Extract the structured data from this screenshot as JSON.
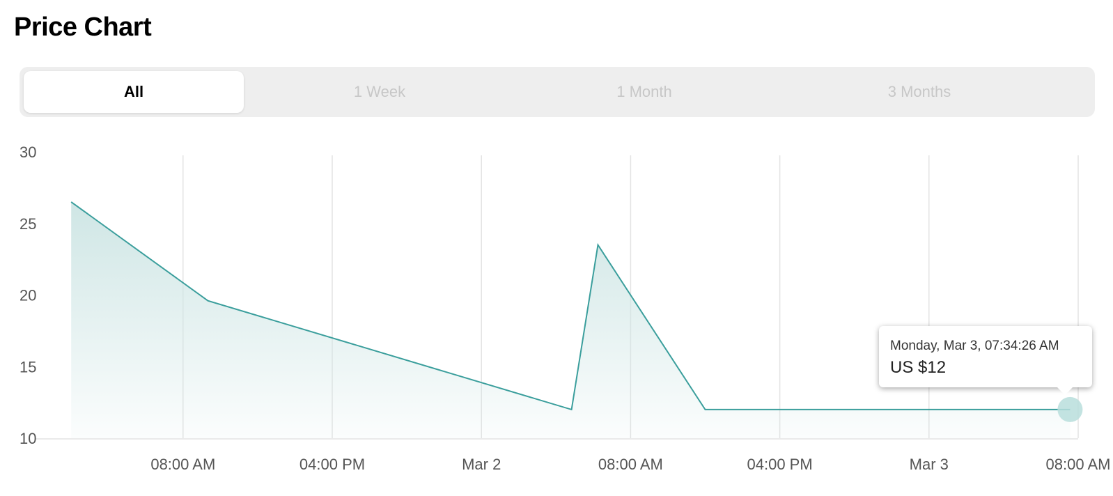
{
  "page": {
    "title": "Price Chart"
  },
  "tabs": [
    {
      "label": "All",
      "active": true
    },
    {
      "label": "1 Week",
      "active": false
    },
    {
      "label": "1 Month",
      "active": false
    },
    {
      "label": "3 Months",
      "active": false
    }
  ],
  "tooltip": {
    "date": "Monday, Mar 3, 07:34:26 AM",
    "price": "US $12"
  },
  "colors": {
    "line": "#3a9e9c",
    "area_top": "#cfe6e5",
    "grid": "#e3e3e3",
    "marker": "#b9dedc"
  },
  "chart_data": {
    "type": "area",
    "title": "",
    "xlabel": "",
    "ylabel": "",
    "ylim": [
      10,
      30
    ],
    "yticks": [
      30,
      25,
      20,
      15,
      10
    ],
    "xlim": [
      "Mar 1, 00:30",
      "Mar 3, 08:00"
    ],
    "xticks": [
      {
        "x": "Mar 1, 08:00",
        "label": "08:00 AM"
      },
      {
        "x": "Mar 1, 16:00",
        "label": "04:00 PM"
      },
      {
        "x": "Mar 2, 00:00",
        "label": "Mar 2"
      },
      {
        "x": "Mar 2, 08:00",
        "label": "08:00 AM"
      },
      {
        "x": "Mar 2, 16:00",
        "label": "04:00 PM"
      },
      {
        "x": "Mar 3, 00:00",
        "label": "Mar 3"
      },
      {
        "x": "Mar 3, 08:00",
        "label": "08:00 AM"
      }
    ],
    "grid": true,
    "series": [
      {
        "points": [
          {
            "x": "Mar 1, 02:00",
            "y": 26.5
          },
          {
            "x": "Mar 1, 09:20",
            "y": 19.6
          },
          {
            "x": "Mar 2, 04:50",
            "y": 12.0
          },
          {
            "x": "Mar 2, 06:15",
            "y": 23.5
          },
          {
            "x": "Mar 2, 12:00",
            "y": 12.0
          },
          {
            "x": "Mar 3, 07:34",
            "y": 12.0
          }
        ]
      }
    ],
    "highlight": {
      "x": "Mar 3, 07:34",
      "y": 12.0
    }
  }
}
